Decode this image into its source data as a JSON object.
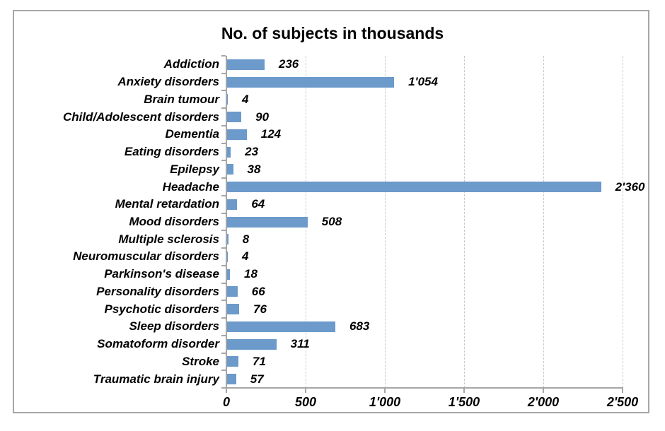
{
  "chart_data": {
    "type": "bar",
    "orientation": "horizontal",
    "title": "No. of subjects in thousands",
    "categories": [
      "Addiction",
      "Anxiety disorders",
      "Brain tumour",
      "Child/Adolescent disorders",
      "Dementia",
      "Eating disorders",
      "Epilepsy",
      "Headache",
      "Mental retardation",
      "Mood disorders",
      "Multiple sclerosis",
      "Neuromuscular disorders",
      "Parkinson's disease",
      "Personality disorders",
      "Psychotic disorders",
      "Sleep disorders",
      "Somatoform disorder",
      "Stroke",
      "Traumatic brain injury"
    ],
    "values": [
      236,
      1054,
      4,
      90,
      124,
      23,
      38,
      2360,
      64,
      508,
      8,
      4,
      18,
      66,
      76,
      683,
      311,
      71,
      57
    ],
    "value_labels": [
      "236",
      "1'054",
      "4",
      "90",
      "124",
      "23",
      "38",
      "2'360",
      "64",
      "508",
      "8",
      "4",
      "18",
      "66",
      "76",
      "683",
      "311",
      "71",
      "57"
    ],
    "xlabel": "",
    "ylabel": "",
    "xlim": [
      0,
      2500
    ],
    "x_tick_values": [
      0,
      500,
      1000,
      1500,
      2000,
      2500
    ],
    "x_tick_labels": [
      "0",
      "500",
      "1'000",
      "1'500",
      "2'000",
      "2'500"
    ],
    "grid": "vertical dashed gridlines at x ticks",
    "legend": "none",
    "colors": {
      "bar": "#6B9ACB",
      "axis": "#a6a6a6",
      "grid": "#c9c9c9",
      "border": "#a6a6a6",
      "text": "#000000",
      "background": "#ffffff"
    }
  }
}
